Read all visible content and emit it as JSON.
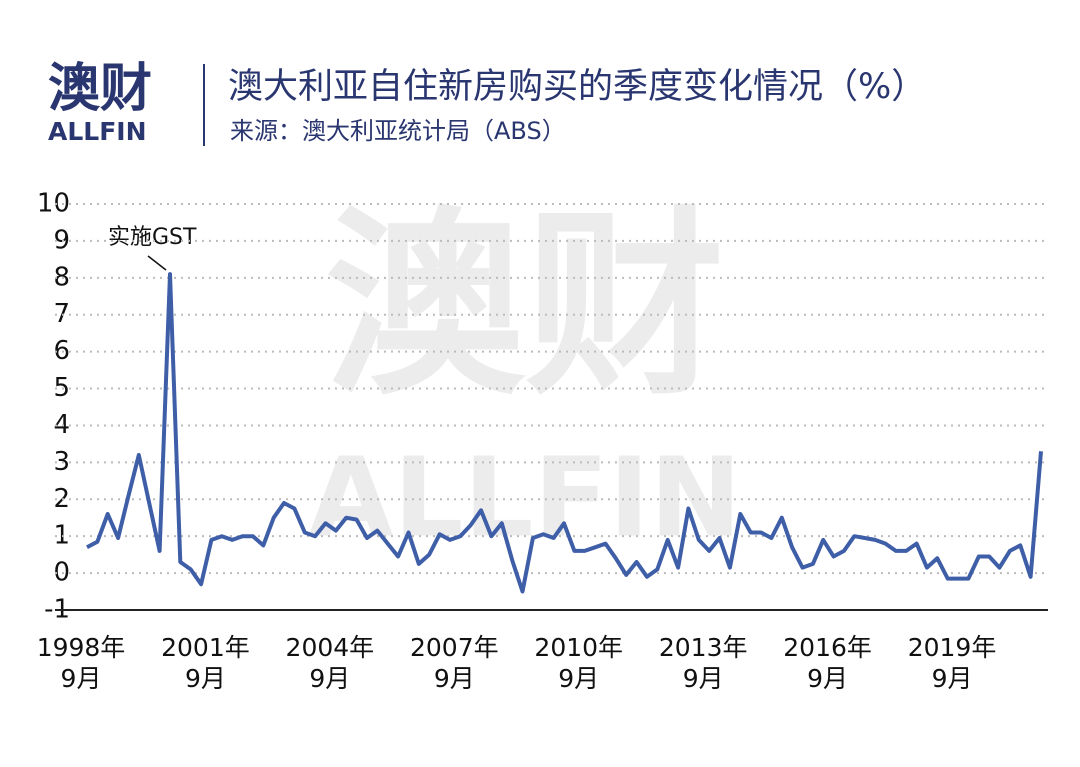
{
  "logo": {
    "name": "澳财",
    "sub": "ALLFIN"
  },
  "chart_data": {
    "type": "line",
    "title": "澳大利亚自住新房购买的季度变化情况（%）",
    "subtitle": "来源：澳大利亚统计局（ABS）",
    "annotation": "实施GST",
    "categories": [
      "1998年\n9月",
      null,
      null,
      null,
      null,
      null,
      null,
      null,
      null,
      null,
      null,
      null,
      "2001年\n9月",
      null,
      null,
      null,
      null,
      null,
      null,
      null,
      null,
      null,
      null,
      null,
      "2004年\n9月",
      null,
      null,
      null,
      null,
      null,
      null,
      null,
      null,
      null,
      null,
      null,
      "2007年\n9月",
      null,
      null,
      null,
      null,
      null,
      null,
      null,
      null,
      null,
      null,
      null,
      "2010年\n9月",
      null,
      null,
      null,
      null,
      null,
      null,
      null,
      null,
      null,
      null,
      null,
      "2013年\n9月",
      null,
      null,
      null,
      null,
      null,
      null,
      null,
      null,
      null,
      null,
      null,
      "2016年\n9月",
      null,
      null,
      null,
      null,
      null,
      null,
      null,
      null,
      null,
      null,
      null,
      "2019年\n9月",
      null,
      null,
      null,
      null,
      null,
      null,
      null,
      null
    ],
    "values": [
      0.7,
      0.85,
      1.6,
      0.95,
      2.1,
      3.2,
      1.9,
      0.6,
      8.1,
      0.3,
      0.1,
      -0.3,
      0.9,
      1.0,
      0.9,
      1.0,
      1.0,
      0.75,
      1.5,
      1.9,
      1.75,
      1.1,
      1.0,
      1.35,
      1.15,
      1.5,
      1.45,
      0.95,
      1.15,
      0.8,
      0.45,
      1.1,
      0.25,
      0.5,
      1.05,
      0.9,
      1.0,
      1.3,
      1.7,
      1.0,
      1.35,
      0.35,
      -0.5,
      0.95,
      1.05,
      0.95,
      1.35,
      0.6,
      0.6,
      0.7,
      0.8,
      0.4,
      -0.05,
      0.3,
      -0.1,
      0.1,
      0.9,
      0.15,
      1.75,
      0.9,
      0.6,
      0.95,
      0.15,
      1.6,
      1.1,
      1.1,
      0.95,
      1.5,
      0.7,
      0.15,
      0.25,
      0.9,
      0.45,
      0.6,
      1.0,
      0.95,
      0.9,
      0.8,
      0.6,
      0.6,
      0.8,
      0.15,
      0.4,
      -0.15,
      -0.15,
      -0.15,
      0.45,
      0.45,
      0.15,
      0.6,
      0.75,
      -0.1,
      3.3
    ],
    "color": "#3f5ea8",
    "ylim": [
      -1,
      10
    ],
    "yticks": [
      -1,
      0,
      1,
      2,
      3,
      4,
      5,
      6,
      7,
      8,
      9,
      10
    ],
    "grid": true
  }
}
